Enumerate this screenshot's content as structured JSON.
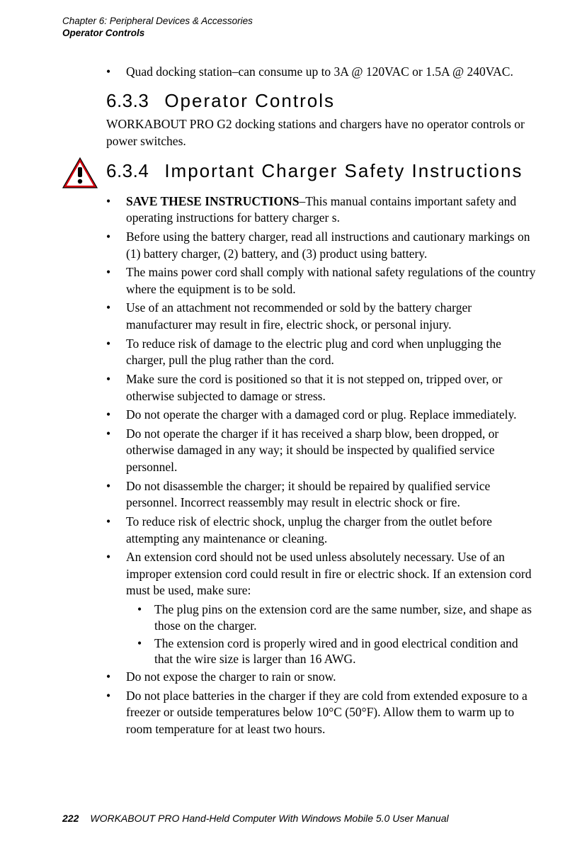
{
  "header": {
    "line1": "Chapter 6:  Peripheral Devices & Accessories",
    "line2": "Operator Controls"
  },
  "intro_bullet": "Quad docking station–can consume up to 3A @ 120VAC or 1.5A @ 240VAC.",
  "sec633": {
    "num": "6.3.3",
    "title": "Operator Controls",
    "para": "WORKABOUT PRO G2 docking stations and chargers have no operator controls or power switches."
  },
  "sec634": {
    "num": "6.3.4",
    "title": "Important Charger Safety Instructions",
    "items": [
      {
        "bold": "SAVE THESE INSTRUCTIONS",
        "rest": "–This manual contains important safety and operating instructions for battery charger s."
      },
      {
        "text": "Before using the battery charger, read all instructions and cautionary markings on (1) battery charger, (2) battery, and (3) product using battery."
      },
      {
        "text": "The mains power cord shall comply with national safety regulations of the country where the equipment is to be sold."
      },
      {
        "text": "Use of an attachment not recommended or sold by the battery charger manufacturer may result in fire, electric shock, or personal injury."
      },
      {
        "text": "To reduce risk of damage to the electric plug and cord when unplugging the charger, pull the plug rather than the cord."
      },
      {
        "text": "Make sure the cord is positioned so that it is not stepped on, tripped over, or otherwise subjected to damage or stress."
      },
      {
        "text": "Do not operate the charger with a damaged cord or plug. Replace immediately."
      },
      {
        "text": "Do not operate the charger if it has received a sharp blow, been dropped, or otherwise damaged in any way; it should be inspected by qualified service personnel."
      },
      {
        "text": "Do not disassemble the charger; it should be repaired by qualified service personnel. Incorrect reassembly may result in electric shock or fire."
      },
      {
        "text": "To reduce risk of electric shock, unplug the charger from the outlet before attempting any maintenance or cleaning."
      },
      {
        "text": "An extension cord should not be used unless absolutely necessary. Use of an improper extension cord could result in fire or electric shock. If an extension cord must be used, make sure:",
        "sub": [
          "The plug pins on the extension cord are the same number, size, and shape as those on the charger.",
          "The extension cord is properly wired and in good electrical condition and that the wire size is larger than 16 AWG."
        ]
      },
      {
        "text": "Do not expose the charger to rain or snow."
      },
      {
        "text": "Do not place batteries in the charger if they are cold from extended exposure to a freezer or outside temperatures below 10°C (50°F). Allow them to warm up to room temperature for at least two hours."
      }
    ]
  },
  "footer": {
    "page": "222",
    "text": "WORKABOUT PRO Hand-Held Computer With Windows Mobile 5.0 User Manual"
  },
  "colors": {
    "text": "#000000",
    "bg": "#ffffff",
    "warn_red": "#d4000f",
    "warn_black": "#000000",
    "warn_white": "#ffffff"
  }
}
